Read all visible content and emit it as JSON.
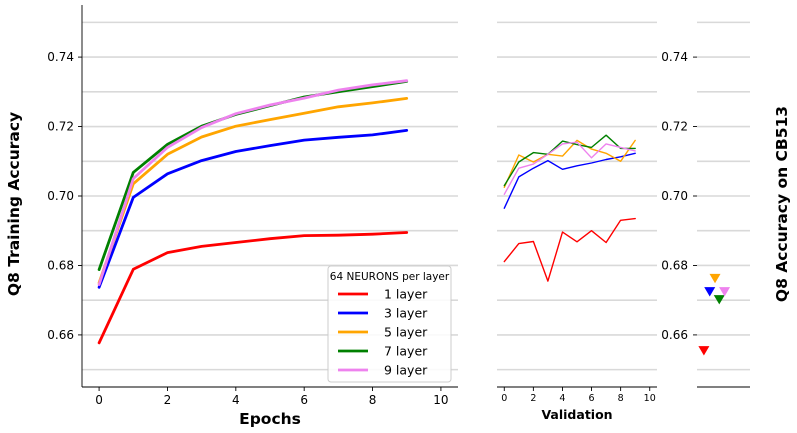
{
  "chart_data": [
    {
      "type": "line",
      "panel": "training",
      "xlabel": "Epochs",
      "ylabel": "Q8 Training Accuracy",
      "xlim": [
        -0.5,
        10.5
      ],
      "ylim": [
        0.645,
        0.755
      ],
      "xticks": [
        "0",
        "2",
        "4",
        "6",
        "8",
        "10"
      ],
      "yticks": [
        "0.66",
        "0.68",
        "0.70",
        "0.72",
        "0.74"
      ],
      "grid": "horizontal",
      "legend": {
        "title": "64 NEURONS per layer",
        "placement": "lower-right"
      },
      "x": [
        0,
        1,
        2,
        3,
        4,
        5,
        6,
        7,
        8,
        9
      ],
      "series": [
        {
          "name": "1 layer",
          "color": "#ff0000",
          "values": [
            0.6577,
            0.6789,
            0.6837,
            0.6855,
            0.6866,
            0.6877,
            0.6886,
            0.6887,
            0.689,
            0.6895
          ]
        },
        {
          "name": "3 layer",
          "color": "#0000ff",
          "values": [
            0.6737,
            0.6996,
            0.7064,
            0.7102,
            0.7128,
            0.7145,
            0.7161,
            0.7169,
            0.7176,
            0.7189
          ]
        },
        {
          "name": "5 layer",
          "color": "#ffa500",
          "values": [
            0.675,
            0.7035,
            0.712,
            0.717,
            0.7201,
            0.722,
            0.7238,
            0.7257,
            0.7268,
            0.7281
          ]
        },
        {
          "name": "7 layer",
          "color": "#008000",
          "values": [
            0.6788,
            0.7068,
            0.7149,
            0.7201,
            0.7235,
            0.726,
            0.7285,
            0.73,
            0.7315,
            0.733
          ]
        },
        {
          "name": "9 layer",
          "color": "#ee82ee",
          "values": [
            0.6745,
            0.705,
            0.714,
            0.7197,
            0.7237,
            0.7262,
            0.7282,
            0.7305,
            0.732,
            0.7332
          ]
        }
      ]
    },
    {
      "type": "line",
      "panel": "validation",
      "xlabel": "Validation",
      "ylabel": "",
      "xlim": [
        -0.5,
        10.5
      ],
      "ylim": [
        0.645,
        0.755
      ],
      "xticks": [
        "0",
        "2",
        "4",
        "6",
        "8",
        "10"
      ],
      "grid": "horizontal",
      "x": [
        0,
        1,
        2,
        3,
        4,
        5,
        6,
        7,
        8,
        9
      ],
      "series": [
        {
          "color": "#ff0000",
          "values": [
            0.6811,
            0.6863,
            0.6869,
            0.6755,
            0.6896,
            0.6868,
            0.69,
            0.6866,
            0.693,
            0.6935
          ]
        },
        {
          "color": "#0000ff",
          "values": [
            0.6965,
            0.7055,
            0.708,
            0.7102,
            0.7077,
            0.7087,
            0.7095,
            0.7105,
            0.7113,
            0.7123
          ]
        },
        {
          "color": "#ffa500",
          "values": [
            0.7025,
            0.7118,
            0.7098,
            0.712,
            0.7115,
            0.716,
            0.7135,
            0.7123,
            0.71,
            0.716
          ]
        },
        {
          "color": "#008000",
          "values": [
            0.703,
            0.7098,
            0.7125,
            0.712,
            0.7158,
            0.7148,
            0.714,
            0.7175,
            0.7137,
            0.7137
          ]
        },
        {
          "color": "#ee82ee",
          "values": [
            0.7005,
            0.708,
            0.7092,
            0.712,
            0.715,
            0.7155,
            0.711,
            0.715,
            0.714,
            0.713
          ]
        }
      ]
    },
    {
      "type": "scatter",
      "panel": "cb513",
      "ylabel": "Q8 Accuracy on CB513",
      "ylim": [
        0.645,
        0.755
      ],
      "yticks": [
        "0.66",
        "0.68",
        "0.70",
        "0.72",
        "0.74"
      ],
      "grid": "horizontal",
      "marker": "triangle-down",
      "points": [
        {
          "color": "#ff0000",
          "x": 0.13,
          "y": 0.6555
        },
        {
          "color": "#0000ff",
          "x": 0.24,
          "y": 0.6725
        },
        {
          "color": "#ffa500",
          "x": 0.34,
          "y": 0.6763
        },
        {
          "color": "#008000",
          "x": 0.42,
          "y": 0.6702
        },
        {
          "color": "#ee82ee",
          "x": 0.52,
          "y": 0.6725
        }
      ]
    }
  ]
}
